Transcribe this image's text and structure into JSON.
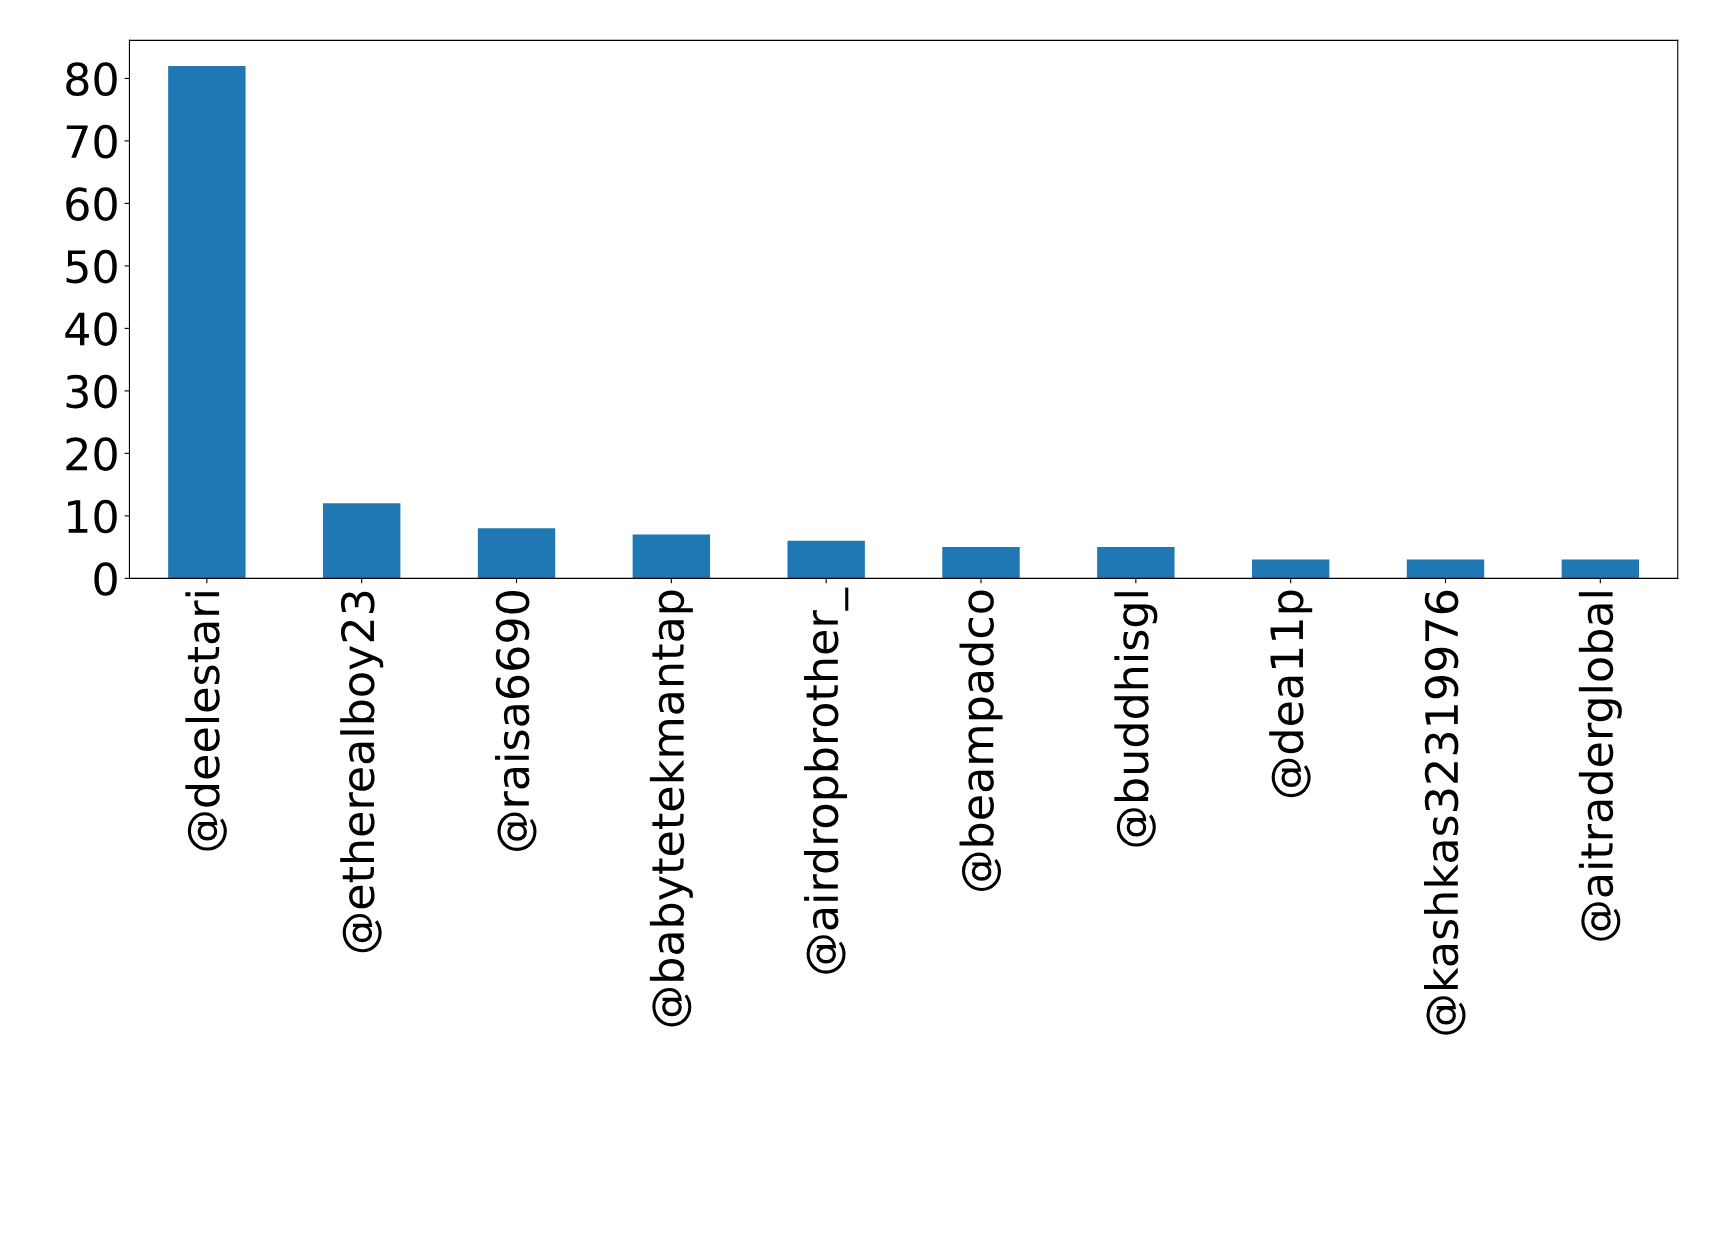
{
  "chart_data": {
    "type": "bar",
    "categories": [
      "@deelestari",
      "@etherealboy23",
      "@raisa6690",
      "@babytetekmantap",
      "@airdropbrother_",
      "@beampadco",
      "@buddhisgl",
      "@dea11p",
      "@kashkas32319976",
      "@aitraderglobal"
    ],
    "values": [
      82,
      12,
      8,
      7,
      6,
      5,
      5,
      3,
      3,
      3
    ],
    "color": "#1f77b4",
    "ylim": [
      0,
      86.1
    ],
    "yticks": [
      0,
      10,
      20,
      30,
      40,
      50,
      60,
      70,
      80
    ],
    "grid": false,
    "legend": false
  }
}
